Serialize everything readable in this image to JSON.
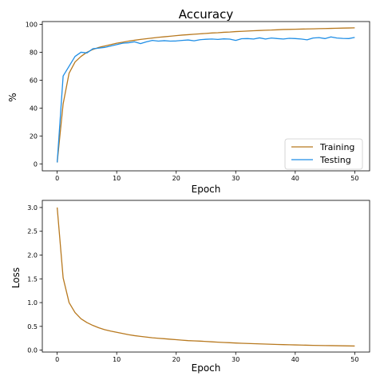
{
  "colors": {
    "training": "#b8791f",
    "testing": "#1f8ee6",
    "axis": "#000000",
    "background": "#ffffff"
  },
  "chart_data": [
    {
      "type": "line",
      "title": "Accuracy",
      "xlabel": "Epoch",
      "ylabel": "%",
      "xlim": [
        -2.5,
        52.5
      ],
      "ylim": [
        -5,
        102
      ],
      "xticks": [
        0,
        10,
        20,
        30,
        40,
        50
      ],
      "yticks": [
        0,
        20,
        40,
        60,
        80,
        100
      ],
      "grid": false,
      "legend": {
        "position": "lower-right",
        "entries": [
          {
            "label": "Training",
            "series": 0
          },
          {
            "label": "Testing",
            "series": 1
          }
        ]
      },
      "x": [
        0,
        1,
        2,
        3,
        4,
        5,
        6,
        7,
        8,
        9,
        10,
        11,
        12,
        13,
        14,
        15,
        16,
        17,
        18,
        19,
        20,
        21,
        22,
        23,
        24,
        25,
        26,
        27,
        28,
        29,
        30,
        31,
        32,
        33,
        34,
        35,
        36,
        37,
        38,
        39,
        40,
        41,
        42,
        43,
        44,
        45,
        46,
        47,
        48,
        49,
        50
      ],
      "series": [
        {
          "name": "Training",
          "color_key": "training",
          "values": [
            1,
            43,
            65,
            73,
            77,
            80,
            82,
            83.5,
            84.5,
            85.5,
            86.5,
            87.2,
            88,
            88.6,
            89.2,
            89.7,
            90.2,
            90.7,
            91.1,
            91.5,
            91.9,
            92.3,
            92.6,
            92.9,
            93.2,
            93.5,
            93.8,
            94,
            94.3,
            94.5,
            94.8,
            95,
            95.2,
            95.4,
            95.6,
            95.8,
            95.9,
            96.1,
            96.3,
            96.4,
            96.5,
            96.6,
            96.7,
            96.8,
            96.9,
            97,
            97.1,
            97.2,
            97.3,
            97.4,
            97.5
          ]
        },
        {
          "name": "Testing",
          "color_key": "testing",
          "values": [
            1,
            63,
            70,
            77,
            80,
            79.5,
            82.5,
            83,
            83.5,
            84.5,
            85.5,
            86.5,
            86.8,
            87.5,
            86.2,
            87.5,
            88.5,
            88,
            88.3,
            88,
            88.1,
            88.5,
            88.8,
            88.2,
            89,
            89.3,
            89.5,
            89.2,
            89.6,
            89.4,
            88.5,
            89.7,
            89.8,
            89.5,
            90.3,
            89.5,
            90.2,
            89.8,
            89.5,
            90,
            89.8,
            89.5,
            88.9,
            90.2,
            90.5,
            89.8,
            91,
            90.2,
            89.9,
            89.8,
            90.6
          ]
        }
      ]
    },
    {
      "type": "line",
      "title": "",
      "xlabel": "Epoch",
      "ylabel": "Loss",
      "xlim": [
        -2.5,
        52.5
      ],
      "ylim": [
        -0.04,
        3.15
      ],
      "xticks": [
        0,
        10,
        20,
        30,
        40,
        50
      ],
      "yticks": [
        0.0,
        0.5,
        1.0,
        1.5,
        2.0,
        2.5,
        3.0
      ],
      "ytick_labels": [
        "0.0",
        "0.5",
        "1.0",
        "1.5",
        "2.0",
        "2.5",
        "3.0"
      ],
      "grid": false,
      "x": [
        0,
        1,
        2,
        3,
        4,
        5,
        6,
        7,
        8,
        9,
        10,
        11,
        12,
        13,
        14,
        15,
        16,
        17,
        18,
        19,
        20,
        21,
        22,
        23,
        24,
        25,
        26,
        27,
        28,
        29,
        30,
        31,
        32,
        33,
        34,
        35,
        36,
        37,
        38,
        39,
        40,
        41,
        42,
        43,
        44,
        45,
        46,
        47,
        48,
        49,
        50
      ],
      "series": [
        {
          "color_key": "training",
          "values": [
            3.0,
            1.52,
            1.0,
            0.79,
            0.66,
            0.58,
            0.52,
            0.47,
            0.43,
            0.4,
            0.375,
            0.35,
            0.325,
            0.305,
            0.29,
            0.275,
            0.26,
            0.25,
            0.24,
            0.23,
            0.22,
            0.21,
            0.2,
            0.195,
            0.19,
            0.182,
            0.175,
            0.168,
            0.162,
            0.156,
            0.15,
            0.145,
            0.14,
            0.136,
            0.132,
            0.128,
            0.124,
            0.12,
            0.116,
            0.113,
            0.11,
            0.107,
            0.104,
            0.101,
            0.099,
            0.097,
            0.095,
            0.093,
            0.091,
            0.089,
            0.087
          ]
        }
      ]
    }
  ]
}
